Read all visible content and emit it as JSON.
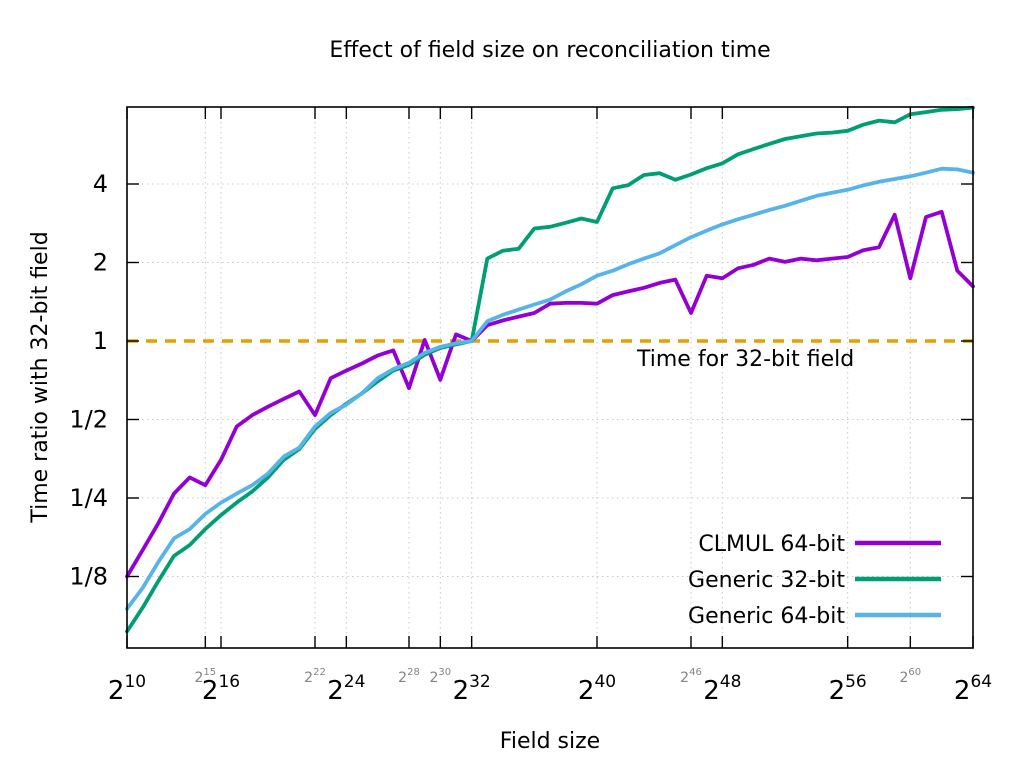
{
  "chart_data": {
    "type": "line",
    "title": "Effect of field size on reconciliation time",
    "xlabel": "Field size",
    "ylabel": "Time ratio with 32-bit field",
    "x_scale": "log2",
    "y_scale": "log2",
    "x_exponent_range": [
      10,
      64
    ],
    "y_limits": [
      0.067,
      7.9
    ],
    "x_tick_base": "2",
    "x_major_ticks": [
      10,
      16,
      24,
      32,
      40,
      48,
      56,
      64
    ],
    "x_minor_ticks": [
      15,
      22,
      28,
      30,
      46,
      60
    ],
    "y_ticks": [
      {
        "label": "4",
        "value": 4
      },
      {
        "label": "2",
        "value": 2
      },
      {
        "label": "1",
        "value": 1,
        "highlight": true
      },
      {
        "label": "1/2",
        "value": 0.5
      },
      {
        "label": "1/4",
        "value": 0.25
      },
      {
        "label": "1/8",
        "value": 0.125
      }
    ],
    "reference_line": {
      "value": 1,
      "label": "Time for 32-bit field",
      "color": "#E69F00",
      "style": "dashed"
    },
    "grid": true,
    "legend_position": "inside-bottom-right",
    "x_exponents": [
      10,
      11,
      12,
      13,
      14,
      15,
      16,
      17,
      18,
      19,
      20,
      21,
      22,
      23,
      24,
      25,
      26,
      27,
      28,
      29,
      30,
      31,
      32,
      33,
      34,
      35,
      36,
      37,
      38,
      39,
      40,
      41,
      42,
      43,
      44,
      45,
      46,
      47,
      48,
      49,
      50,
      51,
      52,
      53,
      54,
      55,
      56,
      57,
      58,
      59,
      60,
      61,
      62,
      63,
      64
    ],
    "series": [
      {
        "name": "CLMUL 64-bit",
        "color": "#9400D3",
        "values": [
          0.125,
          0.158,
          0.2,
          0.26,
          0.3,
          0.28,
          0.35,
          0.47,
          0.52,
          0.56,
          0.6,
          0.64,
          0.52,
          0.72,
          0.77,
          0.82,
          0.88,
          0.92,
          0.66,
          1.01,
          0.71,
          1.06,
          1.0,
          1.15,
          1.2,
          1.24,
          1.28,
          1.39,
          1.4,
          1.4,
          1.39,
          1.5,
          1.55,
          1.6,
          1.67,
          1.72,
          1.28,
          1.78,
          1.74,
          1.9,
          1.96,
          2.07,
          2.01,
          2.07,
          2.04,
          2.07,
          2.1,
          2.23,
          2.29,
          3.05,
          1.74,
          2.99,
          3.13,
          1.86,
          1.62
        ]
      },
      {
        "name": "Generic 32-bit",
        "color": "#009E73",
        "values": [
          0.077,
          0.095,
          0.12,
          0.15,
          0.165,
          0.19,
          0.215,
          0.24,
          0.265,
          0.3,
          0.35,
          0.385,
          0.46,
          0.52,
          0.575,
          0.63,
          0.7,
          0.77,
          0.81,
          0.885,
          0.94,
          0.97,
          1.0,
          2.07,
          2.22,
          2.26,
          2.7,
          2.74,
          2.84,
          2.95,
          2.86,
          3.85,
          3.96,
          4.33,
          4.4,
          4.15,
          4.35,
          4.6,
          4.8,
          5.2,
          5.45,
          5.7,
          5.95,
          6.1,
          6.25,
          6.3,
          6.4,
          6.75,
          7.0,
          6.9,
          7.4,
          7.55,
          7.7,
          7.75,
          7.85
        ]
      },
      {
        "name": "Generic 64-bit",
        "color": "#56B4E9",
        "values": [
          0.094,
          0.113,
          0.142,
          0.175,
          0.19,
          0.217,
          0.24,
          0.26,
          0.28,
          0.31,
          0.36,
          0.39,
          0.47,
          0.53,
          0.57,
          0.63,
          0.72,
          0.78,
          0.825,
          0.9,
          0.95,
          0.98,
          1.0,
          1.19,
          1.26,
          1.32,
          1.38,
          1.44,
          1.55,
          1.65,
          1.78,
          1.86,
          1.97,
          2.07,
          2.17,
          2.33,
          2.5,
          2.65,
          2.8,
          2.93,
          3.05,
          3.18,
          3.3,
          3.45,
          3.6,
          3.7,
          3.8,
          3.95,
          4.08,
          4.18,
          4.28,
          4.42,
          4.58,
          4.55,
          4.42
        ]
      }
    ],
    "colors": {
      "grid": "#c9c9c9",
      "minor_label": "#848484",
      "frame": "#000000",
      "reference": "#E69F00"
    }
  }
}
